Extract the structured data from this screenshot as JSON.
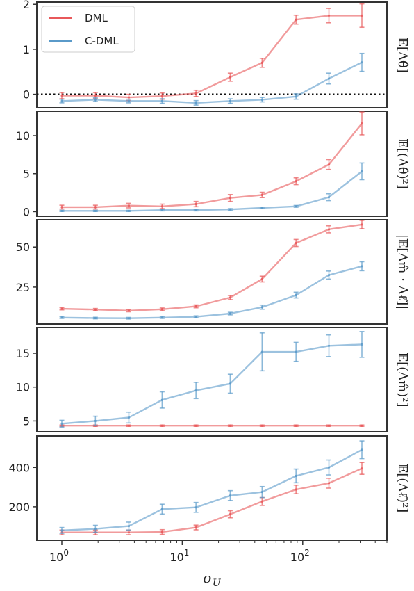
{
  "chart_data": {
    "type": "line",
    "x": [
      1,
      1.9,
      3.6,
      6.8,
      13,
      25,
      46,
      88,
      165,
      310
    ],
    "x_axis": {
      "label": "σ_U",
      "label_main": "σ",
      "label_sub": "U",
      "scale": "log",
      "ticks": [
        {
          "value": 1,
          "base": "10",
          "exp": "0"
        },
        {
          "value": 10,
          "base": "10",
          "exp": "1"
        },
        {
          "value": 100,
          "base": "10",
          "exp": "2"
        }
      ]
    },
    "legend": {
      "placement": "top-left",
      "entries": [
        {
          "label": "DML",
          "color": "#e8585a"
        },
        {
          "label": "C-DML",
          "color": "#5a9ac9"
        }
      ]
    },
    "panels": [
      {
        "ylabel": "𝔼[Δθ̂]",
        "ylim": [
          -0.3,
          2.05
        ],
        "yticks": [
          0,
          1,
          2
        ],
        "ytick_labels": [
          "0",
          "1",
          "2"
        ],
        "reference_line": 0,
        "series": [
          {
            "name": "DML",
            "values": [
              -0.03,
              -0.03,
              -0.07,
              -0.04,
              0.02,
              0.38,
              0.7,
              1.66,
              1.75,
              1.75
            ],
            "errors": [
              0.07,
              0.07,
              0.07,
              0.07,
              0.07,
              0.09,
              0.1,
              0.1,
              0.16,
              0.26
            ]
          },
          {
            "name": "C-DML",
            "values": [
              -0.15,
              -0.12,
              -0.15,
              -0.15,
              -0.19,
              -0.15,
              -0.12,
              -0.05,
              0.35,
              0.71
            ],
            "errors": [
              0.04,
              0.04,
              0.04,
              0.05,
              0.05,
              0.05,
              0.05,
              0.06,
              0.12,
              0.2
            ]
          }
        ]
      },
      {
        "ylabel": "𝔼[(Δθ̂)²]",
        "ylim": [
          -0.6,
          13.2
        ],
        "yticks": [
          0,
          5,
          10
        ],
        "ytick_labels": [
          "0",
          "5",
          "10"
        ],
        "series": [
          {
            "name": "DML",
            "values": [
              0.6,
              0.6,
              0.8,
              0.7,
              1.0,
              1.8,
              2.2,
              4.0,
              6.2,
              11.6
            ],
            "errors": [
              0.25,
              0.25,
              0.3,
              0.3,
              0.35,
              0.45,
              0.35,
              0.45,
              0.65,
              1.5
            ]
          },
          {
            "name": "C-DML",
            "values": [
              0.1,
              0.1,
              0.1,
              0.2,
              0.2,
              0.3,
              0.5,
              0.7,
              1.9,
              5.3
            ],
            "errors": [
              0.08,
              0.08,
              0.08,
              0.1,
              0.1,
              0.1,
              0.1,
              0.12,
              0.45,
              1.1
            ]
          }
        ]
      },
      {
        "ylabel": "|𝔼[Δm̂ · Δℓ̂]|",
        "ylim": [
          2,
          67
        ],
        "yticks": [
          25,
          50
        ],
        "ytick_labels": [
          "25",
          "50"
        ],
        "series": [
          {
            "name": "DML",
            "values": [
              11.5,
              11,
              10.3,
              11.2,
              13,
              18.5,
              30,
              52.5,
              61,
              64
            ],
            "errors": [
              0.7,
              0.7,
              0.7,
              0.8,
              0.9,
              1.3,
              1.8,
              2.2,
              2.2,
              2.6
            ]
          },
          {
            "name": "C-DML",
            "values": [
              6,
              5.7,
              5.6,
              6,
              6.5,
              8.5,
              12.5,
              20,
              32.5,
              38
            ],
            "errors": [
              0.5,
              0.5,
              0.5,
              0.5,
              0.6,
              0.8,
              1.3,
              1.8,
              2.5,
              2.8
            ]
          }
        ]
      },
      {
        "ylabel": "𝔼[(Δm̂)²]",
        "ylim": [
          3.4,
          18.8
        ],
        "yticks": [
          5,
          10,
          15
        ],
        "ytick_labels": [
          "5",
          "10",
          "15"
        ],
        "series": [
          {
            "name": "DML",
            "values": [
              4.3,
              4.3,
              4.3,
              4.3,
              4.3,
              4.3,
              4.3,
              4.3,
              4.3,
              4.3
            ],
            "errors": [
              0.1,
              0.1,
              0.1,
              0.1,
              0.1,
              0.1,
              0.1,
              0.1,
              0.1,
              0.1
            ]
          },
          {
            "name": "C-DML",
            "values": [
              4.6,
              5.0,
              5.5,
              8.1,
              9.5,
              10.5,
              15.2,
              15.2,
              16.1,
              16.3
            ],
            "errors": [
              0.5,
              0.7,
              0.8,
              1.2,
              1.2,
              1.4,
              2.8,
              1.4,
              1.6,
              1.9
            ]
          }
        ]
      },
      {
        "ylabel": "𝔼[(Δℓ̂)²]",
        "ylim": [
          30,
          560
        ],
        "yticks": [
          200,
          400
        ],
        "ytick_labels": [
          "200",
          "400"
        ],
        "series": [
          {
            "name": "DML",
            "values": [
              70,
              70,
              70,
              72,
              95,
              162,
              227,
              288,
              320,
              395
            ],
            "errors": [
              12,
              12,
              12,
              12,
              12,
              18,
              20,
              22,
              25,
              30
            ]
          },
          {
            "name": "C-DML",
            "values": [
              80,
              88,
              102,
              188,
              197,
              257,
              275,
              357,
              400,
              490
            ],
            "errors": [
              15,
              18,
              20,
              25,
              25,
              25,
              28,
              35,
              38,
              45
            ]
          }
        ]
      }
    ]
  }
}
